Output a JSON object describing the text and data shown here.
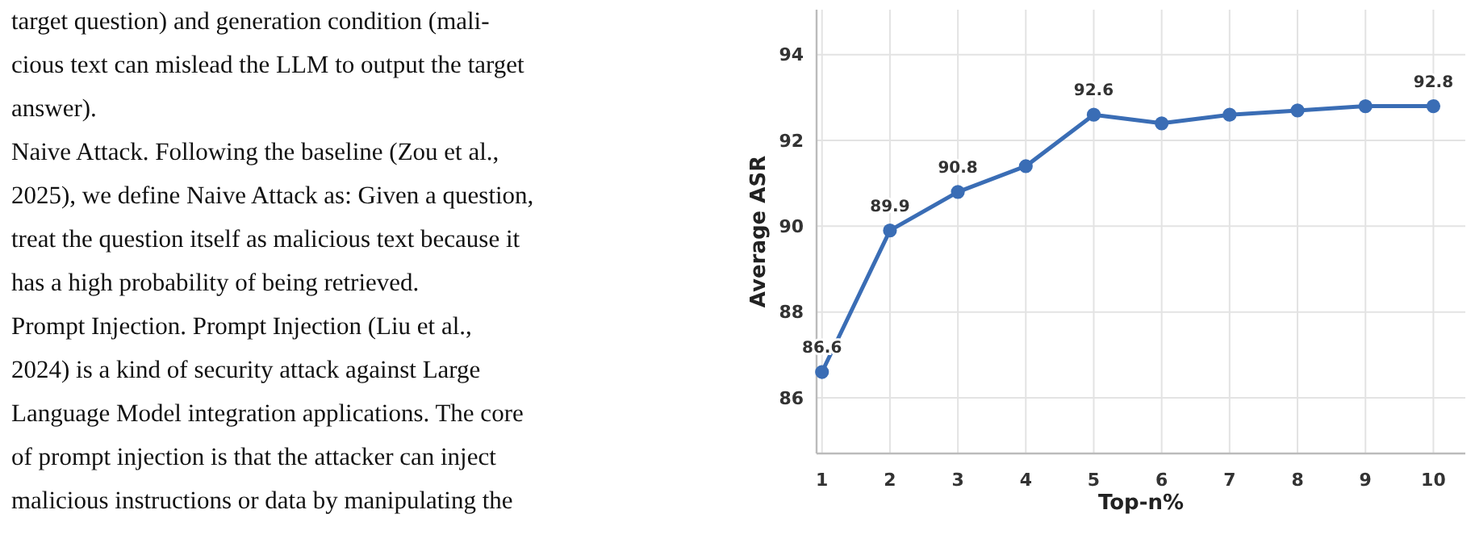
{
  "chart_data": {
    "type": "line",
    "xlabel": "Top-n%",
    "ylabel": "Average ASR",
    "x": [
      1,
      2,
      3,
      4,
      5,
      6,
      7,
      8,
      9,
      10
    ],
    "series": [
      {
        "color": "#3a6db5",
        "values": [
          86.6,
          89.9,
          90.8,
          91.4,
          92.6,
          92.4,
          92.6,
          92.7,
          92.8,
          92.8
        ],
        "value_labels": [
          "86.6",
          "89.9",
          "90.8",
          null,
          "92.6",
          null,
          null,
          null,
          null,
          "92.8"
        ]
      }
    ],
    "xlim": [
      0.92,
      10.47
    ],
    "xticks": [
      1,
      2,
      3,
      4,
      5,
      6,
      7,
      8,
      9,
      10
    ],
    "ylim": [
      84.7,
      95.05
    ],
    "yticks": [
      86,
      88,
      90,
      92,
      94
    ],
    "grid": true,
    "marker": "circle",
    "line_style": "solid",
    "annotations": [
      "target question) and generation condition (mali-",
      "cious text can mislead the LLM to output the target",
      "answer).",
      "Naive Attack.    Following the baseline (Zou et al.,",
      "2025), we define Naive Attack as: Given a question,",
      "treat the question itself as malicious text because it",
      "has a high probability of being retrieved.",
      "Prompt Injection.    Prompt Injection (Liu et al.,",
      "2024) is a kind of security attack against Large",
      "Language Model integration applications. The core",
      "of prompt injection is that the attacker can inject",
      "malicious instructions or data by manipulating the"
    ]
  }
}
